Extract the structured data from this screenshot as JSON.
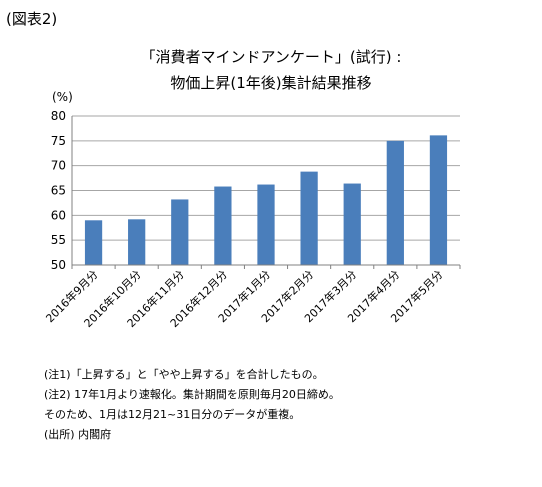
{
  "figure_label": "(図表2)",
  "title_line1": "「消費者マインドアンケート」(試行) :",
  "title_line2": "物価上昇(1年後)集計結果推移",
  "unit_label": "(%)",
  "chart_data": {
    "type": "bar",
    "categories": [
      "2016年9月分",
      "2016年10月分",
      "2016年11月分",
      "2016年12月分",
      "2017年1月分",
      "2017年2月分",
      "2017年3月分",
      "2017年4月分",
      "2017年5月分"
    ],
    "values": [
      59.0,
      59.2,
      63.2,
      65.8,
      66.2,
      68.8,
      66.4,
      75.0,
      76.1
    ],
    "ylim": [
      50,
      80
    ],
    "yticks": [
      50,
      55,
      60,
      65,
      70,
      75,
      80
    ],
    "ytick_labels": [
      "50",
      "55",
      "60",
      "65",
      "70",
      "75",
      "80"
    ],
    "xlabel": "",
    "ylabel": "",
    "grid": "horizontal",
    "bar_color": "#4a7ebb"
  },
  "notes": [
    "(注1)「上昇する」と「やや上昇する」を合計したもの。",
    "(注2) 17年1月より速報化。集計期間を原則毎月20日締め。",
    "そのため、1月は12月21~31日分のデータが重複。",
    "(出所) 内閣府"
  ]
}
